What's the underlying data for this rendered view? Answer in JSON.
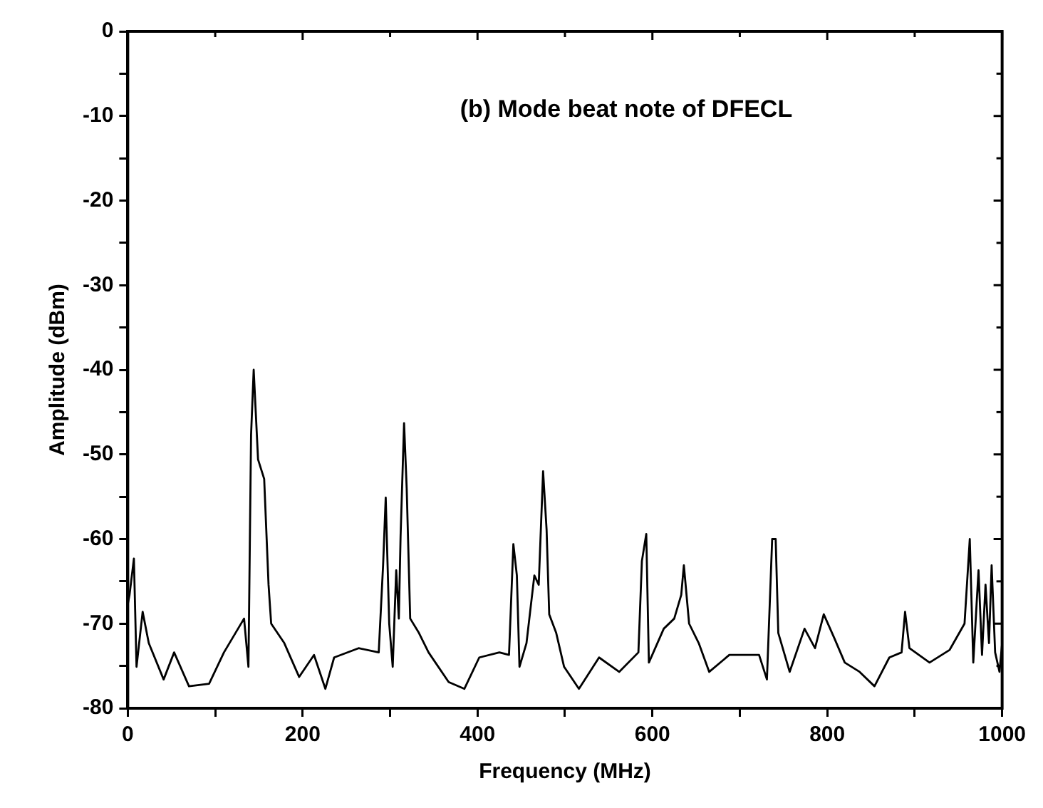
{
  "chart_data": {
    "type": "line",
    "xlabel": "Frequency (MHz)",
    "ylabel": "Amplitude (dBm)",
    "annotations": [
      "(b) Mode beat note of DFECL"
    ],
    "x": [
      0,
      2,
      7,
      10,
      17,
      24,
      41,
      53,
      70,
      93,
      110,
      133,
      138,
      141,
      144,
      149,
      156,
      161,
      164,
      179,
      196,
      213,
      226,
      236,
      264,
      287,
      292,
      295,
      299,
      303,
      307,
      310,
      312,
      316,
      319,
      323,
      333,
      344,
      367,
      385,
      402,
      425,
      436,
      441,
      445,
      448,
      456,
      465,
      470,
      475,
      479,
      482,
      490,
      499,
      516,
      539,
      562,
      584,
      588,
      593,
      596,
      613,
      625,
      633,
      636,
      642,
      653,
      665,
      688,
      722,
      731,
      737,
      741,
      744,
      757,
      774,
      786,
      796,
      808,
      820,
      837,
      854,
      871,
      885,
      889,
      894,
      917,
      940,
      957,
      963,
      967,
      973,
      977,
      981,
      985,
      988,
      992,
      997,
      1000
    ],
    "series": [
      {
        "color": "#000000",
        "values": [
          -67.7,
          -66.6,
          -62.3,
          -75.1,
          -68.6,
          -72.3,
          -76.6,
          -73.4,
          -77.4,
          -77.1,
          -73.4,
          -69.4,
          -75.1,
          -47.7,
          -40,
          -50.6,
          -52.9,
          -65.4,
          -70,
          -72.3,
          -76.3,
          -73.7,
          -77.7,
          -74,
          -72.9,
          -73.4,
          -63.1,
          -55.1,
          -70,
          -75.1,
          -63.7,
          -69.4,
          -59.7,
          -46.3,
          -54,
          -69.4,
          -71.1,
          -73.4,
          -76.9,
          -77.7,
          -74,
          -73.4,
          -73.7,
          -60.6,
          -64.3,
          -75.1,
          -72.3,
          -64.3,
          -65.4,
          -52,
          -58.9,
          -68.9,
          -71.1,
          -75.1,
          -77.7,
          -74,
          -75.7,
          -73.4,
          -62.6,
          -59.4,
          -74.6,
          -70.6,
          -69.4,
          -66.6,
          -63.1,
          -70,
          -72.3,
          -75.7,
          -73.7,
          -73.7,
          -76.6,
          -60,
          -60,
          -71.1,
          -75.7,
          -70.6,
          -72.9,
          -68.9,
          -71.7,
          -74.6,
          -75.7,
          -77.4,
          -74,
          -73.4,
          -68.6,
          -72.9,
          -74.6,
          -73.1,
          -70,
          -60,
          -74.6,
          -63.7,
          -73.7,
          -65.4,
          -72.3,
          -63.1,
          -73.4,
          -75.7,
          -72.3
        ]
      }
    ],
    "xlim": [
      0,
      1000
    ],
    "xticks": [
      0,
      {
        "value": 100,
        "label": null
      },
      200,
      {
        "value": 300,
        "label": null
      },
      400,
      {
        "value": 500,
        "label": null
      },
      600,
      {
        "value": 700,
        "label": null
      },
      800,
      {
        "value": 900,
        "label": null
      },
      1000
    ],
    "ylim": [
      -80,
      0
    ],
    "yticks": [
      -80,
      {
        "value": -75,
        "label": null
      },
      -70,
      {
        "value": -65,
        "label": null
      },
      -60,
      {
        "value": -55,
        "label": null
      },
      -50,
      {
        "value": -45,
        "label": null
      },
      -40,
      {
        "value": -35,
        "label": null
      },
      -30,
      {
        "value": -25,
        "label": null
      },
      -20,
      {
        "value": -15,
        "label": null
      },
      -10,
      {
        "value": -5,
        "label": null
      },
      0
    ],
    "grid": false,
    "legend": false,
    "marker": "none",
    "line_style": "solid"
  }
}
